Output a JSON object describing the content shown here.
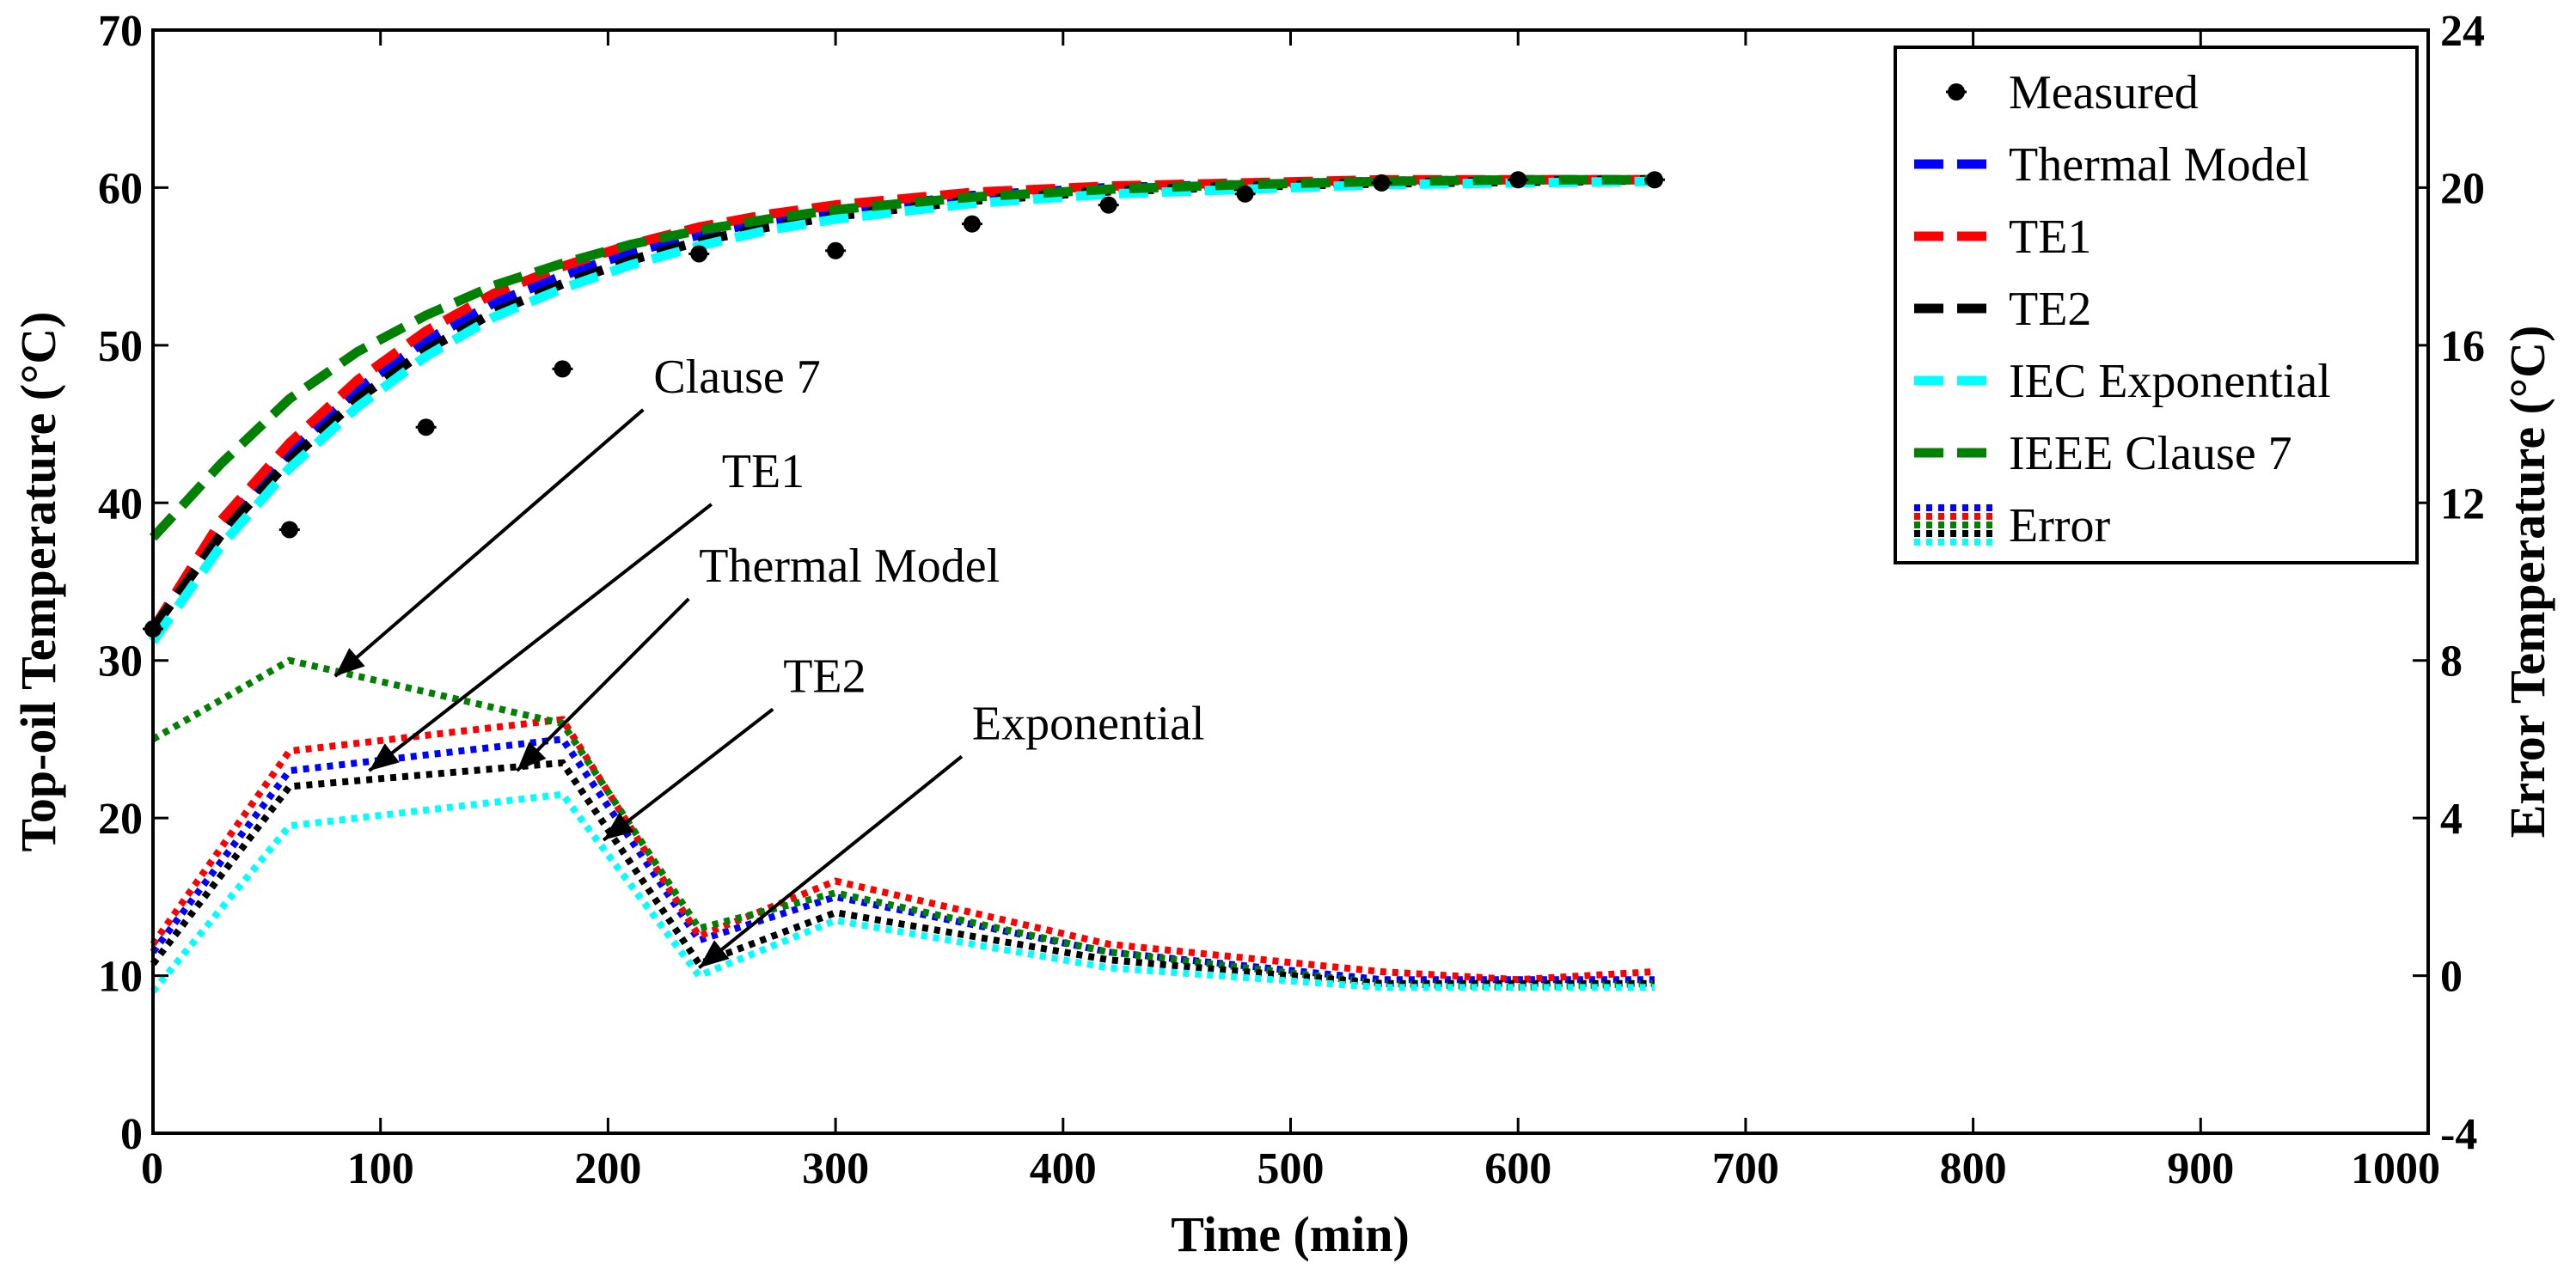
{
  "chart_data": {
    "type": "line",
    "title": "",
    "xlabel": "Time (min)",
    "ylabel": "Top-oil Temperature (°C)",
    "y2label": "Error Temperature (°C)",
    "xlim": [
      0,
      1000
    ],
    "ylim": [
      0,
      70
    ],
    "y2lim": [
      -4,
      24
    ],
    "xticks": [
      "0",
      "100",
      "200",
      "300",
      "400",
      "500",
      "600",
      "700",
      "800",
      "900",
      "1000"
    ],
    "yticks": [
      "0",
      "10",
      "20",
      "30",
      "40",
      "50",
      "60",
      "70"
    ],
    "y2ticks": [
      "-4",
      "0",
      "4",
      "8",
      "12",
      "16",
      "20",
      "24"
    ],
    "grid": false,
    "legend_position": "top-right",
    "series": [
      {
        "name": "Measured",
        "axis": "left",
        "style": "markers",
        "color": "#000000",
        "x": [
          0,
          60,
          120,
          180,
          240,
          300,
          360,
          420,
          480,
          540,
          600,
          660
        ],
        "y": [
          32,
          38.3,
          44.8,
          48.5,
          55.8,
          56,
          57.7,
          58.9,
          59.6,
          60.3,
          60.5,
          60.5
        ]
      },
      {
        "name": "Thermal Model",
        "axis": "left",
        "style": "dashed",
        "color": "#0000ff",
        "x": [
          0,
          30,
          60,
          90,
          120,
          150,
          180,
          210,
          240,
          270,
          300,
          360,
          420,
          480,
          540,
          600,
          660
        ],
        "y": [
          32,
          38.5,
          43.2,
          47.2,
          50.3,
          52.7,
          54.4,
          55.9,
          57.0,
          57.9,
          58.5,
          59.5,
          60.0,
          60.2,
          60.4,
          60.5,
          60.5
        ]
      },
      {
        "name": "TE1",
        "axis": "left",
        "style": "dashed",
        "color": "#ff0000",
        "x": [
          0,
          30,
          60,
          90,
          120,
          150,
          180,
          210,
          240,
          270,
          300,
          360,
          420,
          480,
          540,
          600,
          660
        ],
        "y": [
          32,
          38.9,
          43.8,
          47.8,
          50.9,
          53.3,
          55.0,
          56.4,
          57.5,
          58.3,
          58.9,
          59.7,
          60.1,
          60.3,
          60.5,
          60.5,
          60.5
        ]
      },
      {
        "name": "TE2",
        "axis": "left",
        "style": "dashed",
        "color": "#000000",
        "x": [
          0,
          30,
          60,
          90,
          120,
          150,
          180,
          210,
          240,
          270,
          300,
          360,
          420,
          480,
          540,
          600,
          660
        ],
        "y": [
          32,
          38.0,
          42.7,
          46.6,
          49.7,
          52.1,
          53.9,
          55.4,
          56.6,
          57.5,
          58.2,
          59.2,
          59.8,
          60.1,
          60.3,
          60.4,
          60.5
        ]
      },
      {
        "name": "IEC Exponential",
        "axis": "left",
        "style": "dashed",
        "color": "#00ffff",
        "x": [
          0,
          30,
          60,
          90,
          120,
          150,
          180,
          210,
          240,
          270,
          300,
          360,
          420,
          480,
          540,
          600,
          660
        ],
        "y": [
          31.2,
          37.3,
          42.2,
          46.1,
          49.3,
          51.8,
          53.6,
          55.1,
          56.3,
          57.3,
          58.0,
          59.0,
          59.6,
          59.9,
          60.2,
          60.3,
          60.4
        ]
      },
      {
        "name": "IEEE Clause 7",
        "axis": "left",
        "style": "dashed",
        "color": "#008000",
        "x": [
          0,
          30,
          60,
          90,
          120,
          150,
          180,
          210,
          240,
          270,
          300,
          360,
          420,
          480,
          540,
          600,
          660
        ],
        "y": [
          37.8,
          42.5,
          46.6,
          49.6,
          51.9,
          53.8,
          55.2,
          56.4,
          57.3,
          58.0,
          58.6,
          59.4,
          59.9,
          60.2,
          60.4,
          60.5,
          60.5
        ]
      },
      {
        "name": "Error",
        "axis": "right",
        "style": "dotted",
        "color": "#0000ff",
        "x": [
          0,
          60,
          180,
          240,
          300,
          420,
          540,
          600,
          660
        ],
        "y": [
          0.6,
          5.2,
          6.0,
          0.9,
          2.0,
          0.6,
          -0.1,
          -0.1,
          -0.1
        ]
      },
      {
        "name": "Error",
        "axis": "right",
        "style": "dotted",
        "color": "#ff0000",
        "x": [
          0,
          60,
          180,
          240,
          300,
          420,
          540,
          600,
          660
        ],
        "y": [
          0.8,
          5.7,
          6.5,
          1.0,
          2.4,
          0.8,
          0.1,
          -0.1,
          0.1
        ]
      },
      {
        "name": "Error",
        "axis": "right",
        "style": "dotted",
        "color": "#008000",
        "x": [
          0,
          60,
          180,
          240,
          300,
          420,
          540,
          600,
          660
        ],
        "y": [
          6.0,
          8.0,
          6.4,
          1.2,
          2.1,
          0.6,
          -0.2,
          -0.3,
          -0.2
        ]
      },
      {
        "name": "Error",
        "axis": "right",
        "style": "dotted",
        "color": "#000000",
        "x": [
          0,
          60,
          180,
          240,
          300,
          420,
          540,
          600,
          660
        ],
        "y": [
          0.3,
          4.8,
          5.4,
          0.3,
          1.6,
          0.4,
          -0.2,
          -0.2,
          -0.2
        ]
      },
      {
        "name": "Error",
        "axis": "right",
        "style": "dotted",
        "color": "#00ffff",
        "x": [
          0,
          60,
          180,
          240,
          300,
          420,
          540,
          600,
          660
        ],
        "y": [
          -0.4,
          3.8,
          4.6,
          0.0,
          1.4,
          0.2,
          -0.3,
          -0.3,
          -0.3
        ]
      }
    ],
    "annotations": [
      {
        "text": "Clause 7",
        "x": 220,
        "y": 47,
        "arrow_to": [
          80,
          29
        ]
      },
      {
        "text": "TE1",
        "x": 250,
        "y": 41,
        "arrow_to": [
          95,
          23
        ]
      },
      {
        "text": "Thermal Model",
        "x": 240,
        "y": 35,
        "arrow_to": [
          160,
          23
        ]
      },
      {
        "text": "TE2",
        "x": 277,
        "y": 28,
        "arrow_to": [
          198,
          18.6
        ]
      },
      {
        "text": "Exponential",
        "x": 360,
        "y": 25,
        "arrow_to": [
          240,
          10.5
        ]
      }
    ]
  }
}
